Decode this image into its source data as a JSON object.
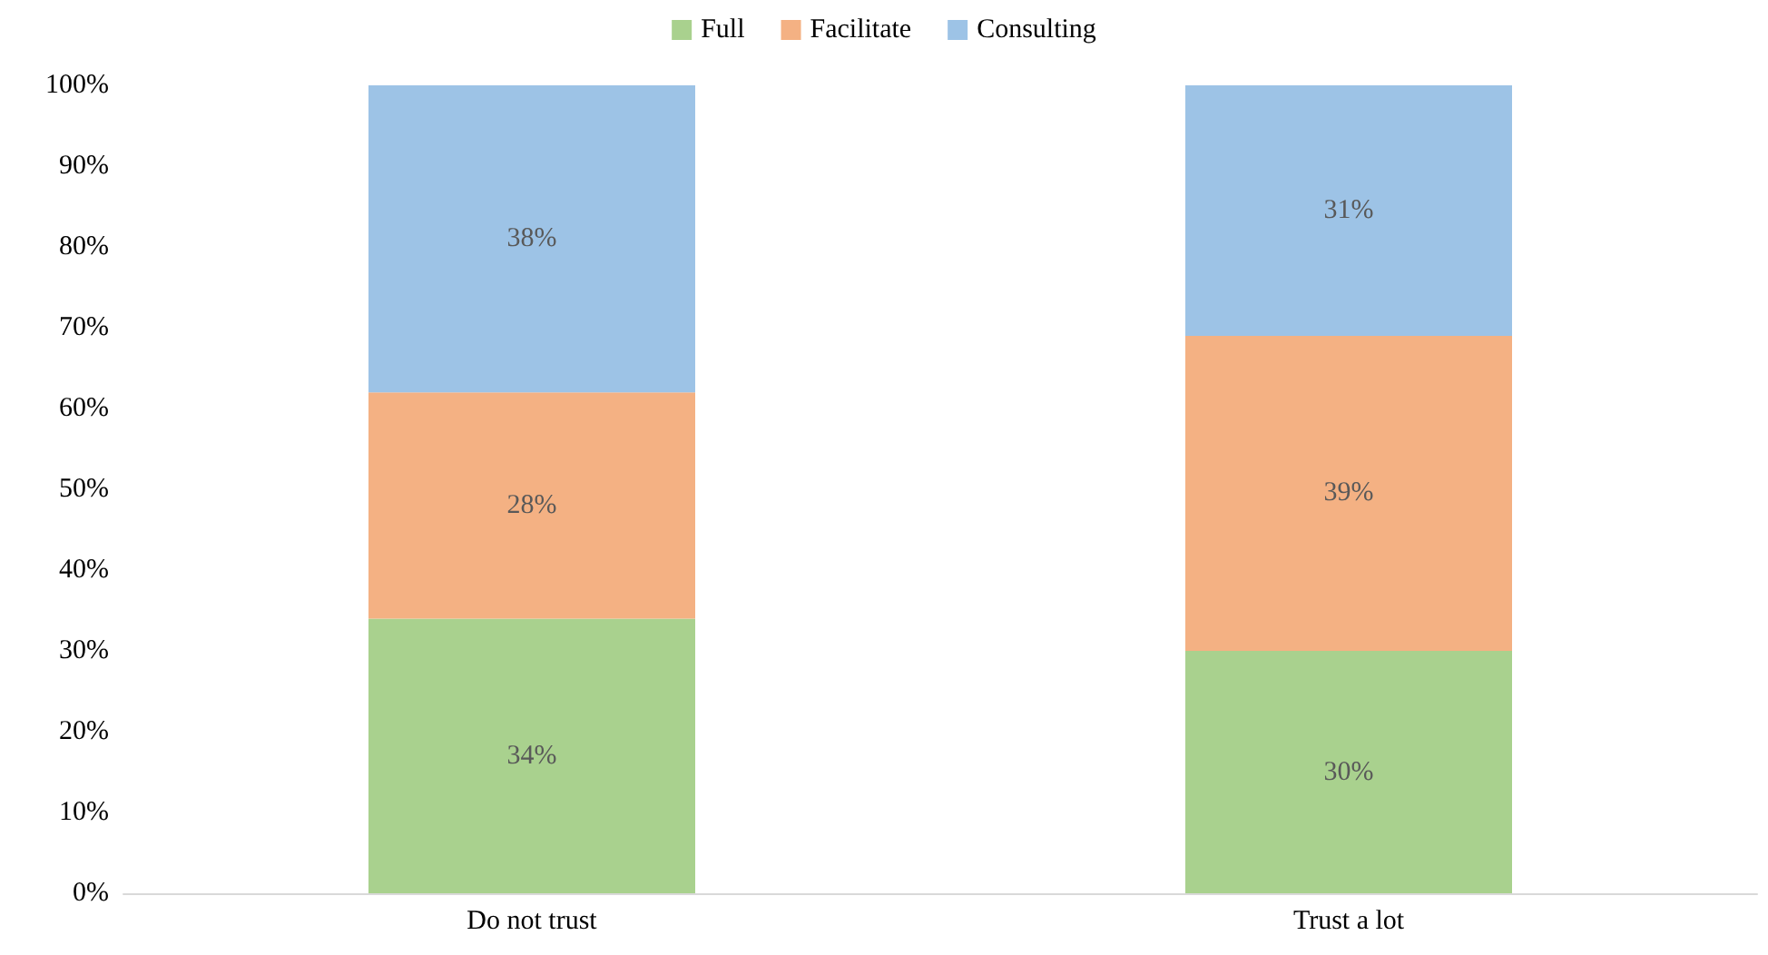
{
  "chart_data": {
    "type": "bar",
    "stacked": true,
    "categories": [
      "Do not trust",
      "Trust a lot"
    ],
    "series": [
      {
        "name": "Full",
        "color": "#a9d18e",
        "values": [
          34,
          30
        ],
        "value_labels": [
          "34%",
          "30%"
        ]
      },
      {
        "name": "Facilitate",
        "color": "#f4b183",
        "values": [
          28,
          39
        ],
        "value_labels": [
          "28%",
          "39%"
        ]
      },
      {
        "name": "Consulting",
        "color": "#9dc3e6",
        "values": [
          38,
          31
        ],
        "value_labels": [
          "38%",
          "31%"
        ]
      }
    ],
    "ylim": [
      0,
      100
    ],
    "yticks": [
      {
        "value": 0,
        "label": "0%"
      },
      {
        "value": 10,
        "label": "10%"
      },
      {
        "value": 20,
        "label": "20%"
      },
      {
        "value": 30,
        "label": "30%"
      },
      {
        "value": 40,
        "label": "40%"
      },
      {
        "value": 50,
        "label": "50%"
      },
      {
        "value": 60,
        "label": "60%"
      },
      {
        "value": 70,
        "label": "70%"
      },
      {
        "value": 80,
        "label": "80%"
      },
      {
        "value": 90,
        "label": "90%"
      },
      {
        "value": 100,
        "label": "100%"
      }
    ],
    "grid": false,
    "legend": "top"
  }
}
